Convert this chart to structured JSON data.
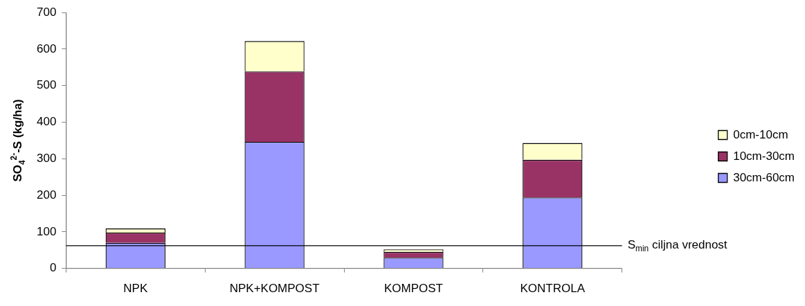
{
  "chart_data": {
    "type": "bar",
    "stacked": true,
    "ylabel": "SO$_{4}$$^{2-}$-S (kg/ha)",
    "categories": [
      "NPK",
      "NPK+KOMPOST",
      "KOMPOST",
      "KONTROLA"
    ],
    "series": [
      {
        "name": "30cm-60cm",
        "color": "#9999ff",
        "values": [
          70,
          346,
          29,
          194
        ]
      },
      {
        "name": "10cm-30cm",
        "color": "#993366",
        "values": [
          28,
          193,
          16,
          103
        ]
      },
      {
        "name": "0cm-10cm",
        "color": "#ffffcc",
        "values": [
          11,
          83,
          7,
          46
        ]
      }
    ],
    "ylim": [
      0,
      700
    ],
    "yticks": [
      0,
      100,
      200,
      300,
      400,
      500,
      600,
      700
    ],
    "grid": false,
    "legend": "right",
    "ref_lines": [
      {
        "axis": "y",
        "value": 62,
        "label": "S$_{min}$ ciljna vrednost",
        "color": "#000000"
      }
    ]
  }
}
